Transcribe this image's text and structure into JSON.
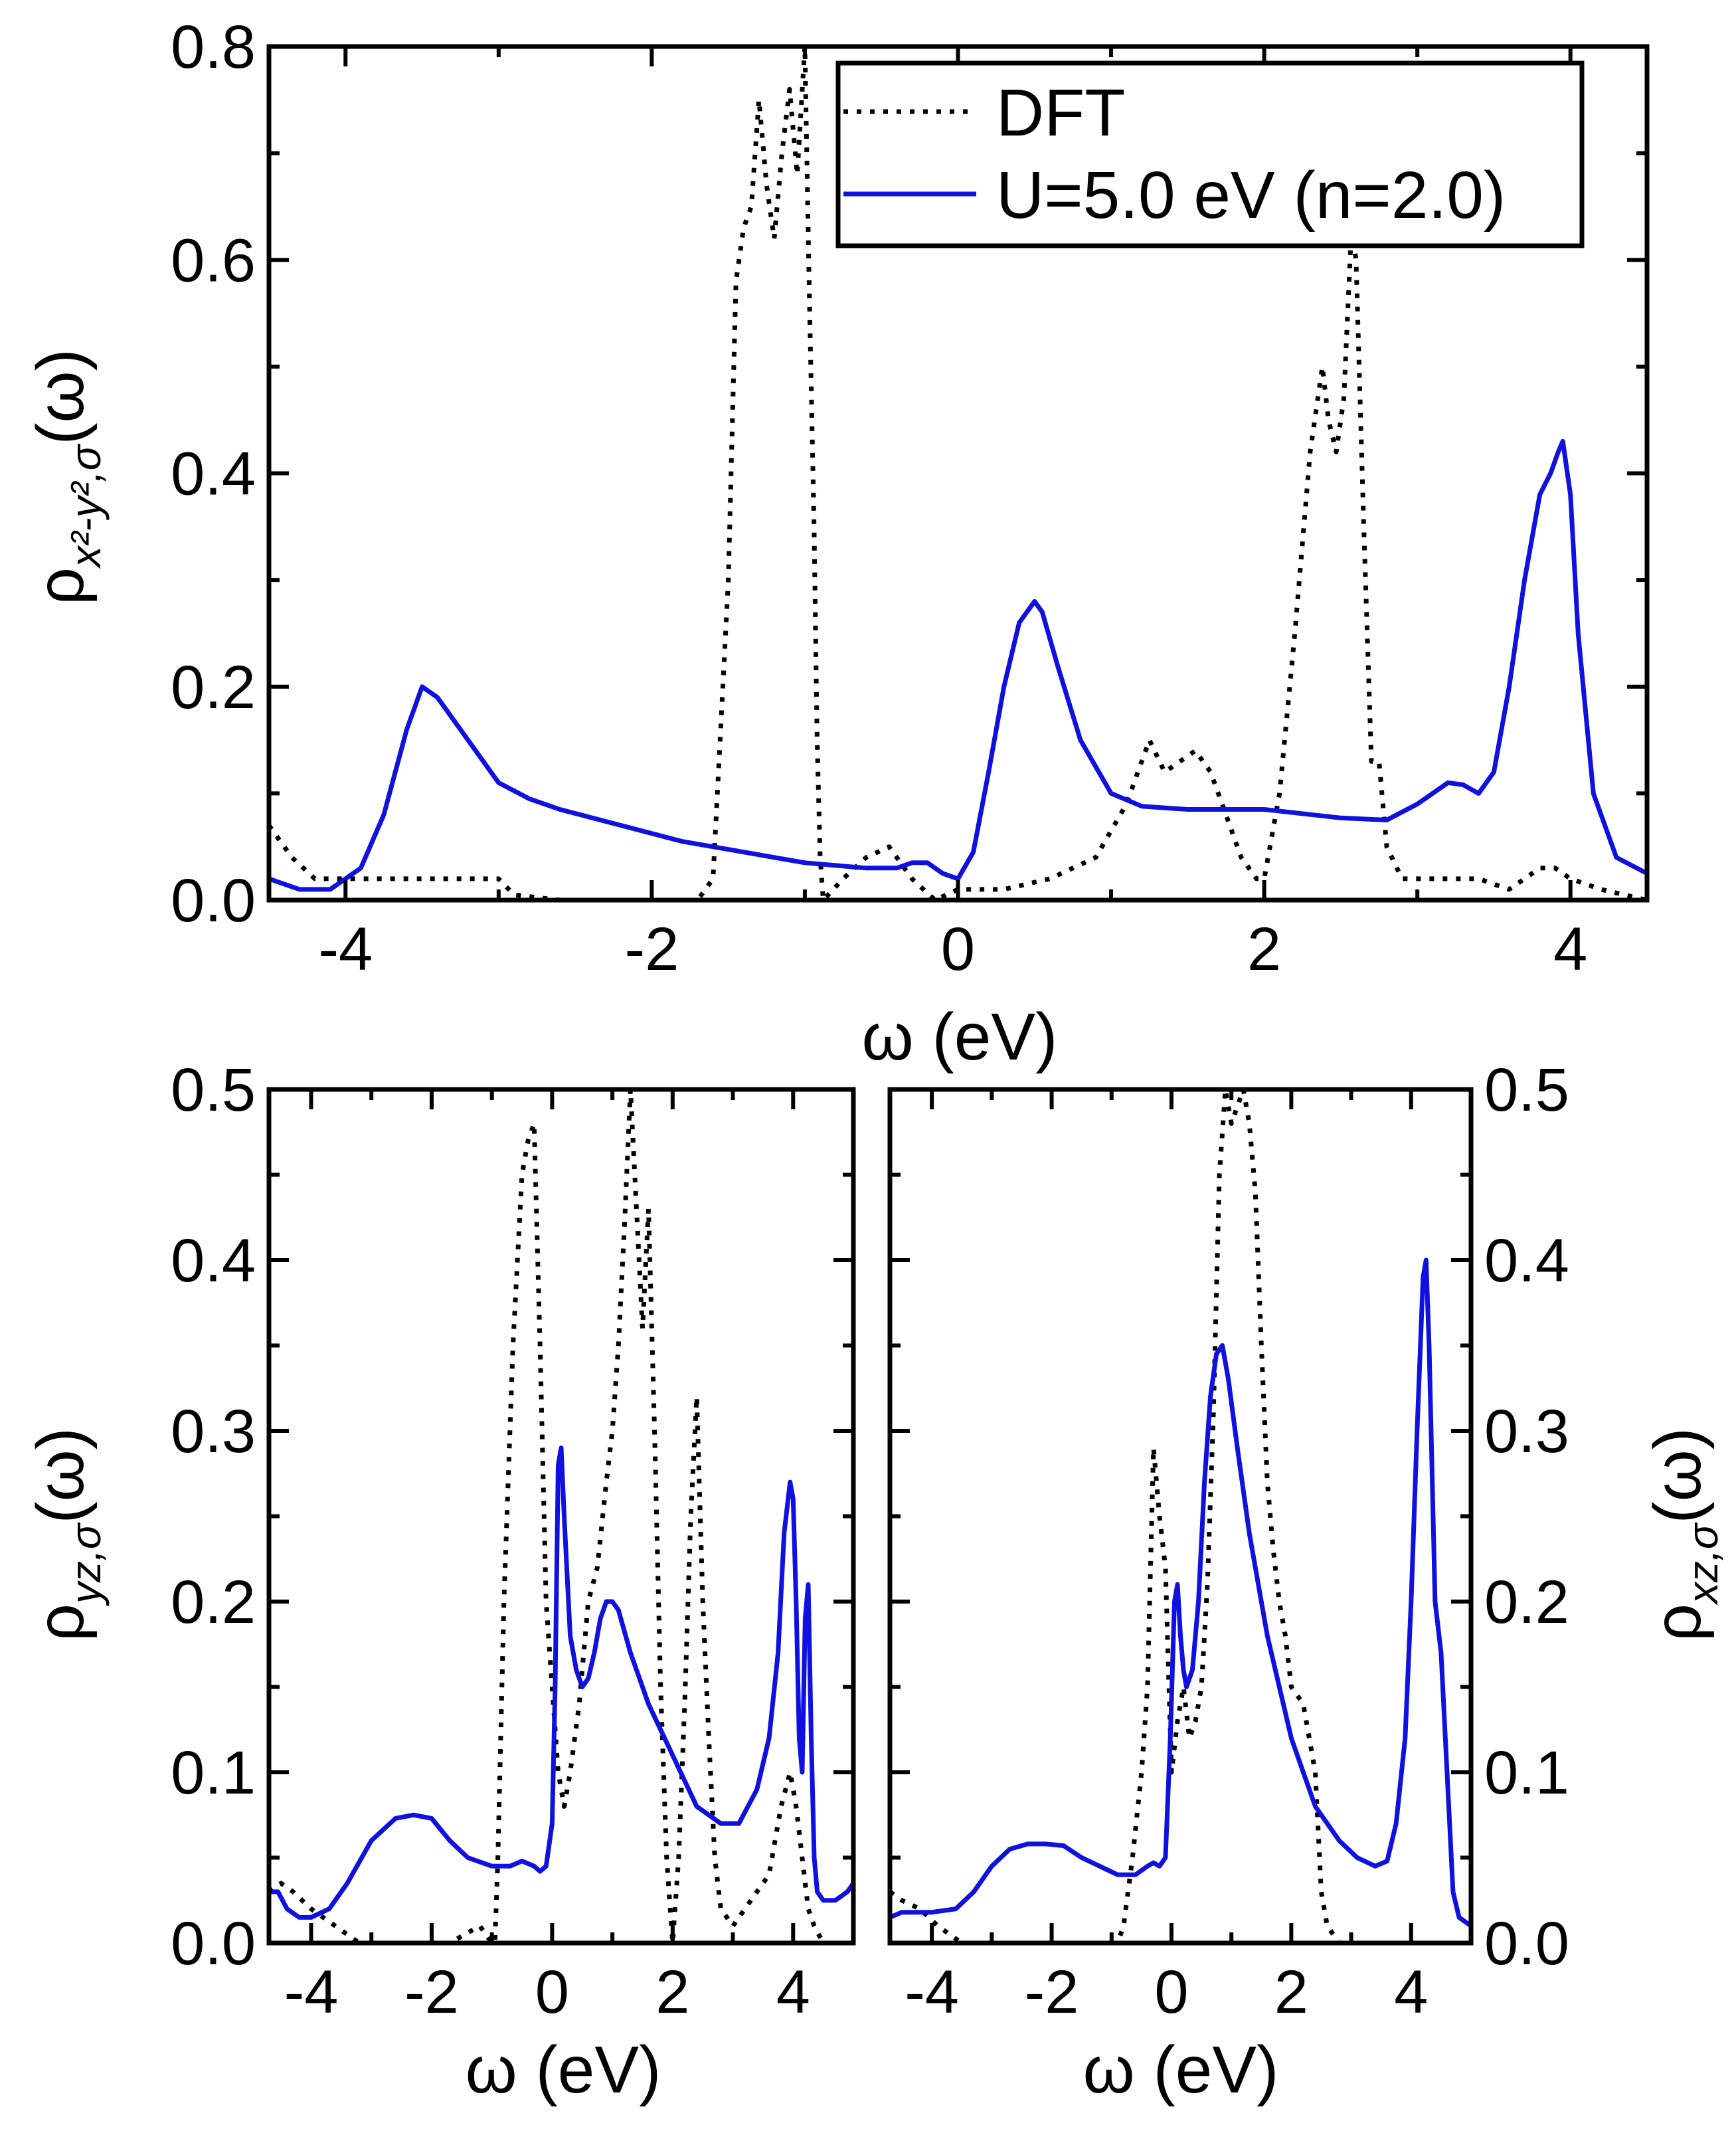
{
  "colors": {
    "dft": "#000000",
    "u": "#1010e0",
    "axis": "#000000"
  },
  "legend": {
    "dft_label": "DFT",
    "u_label": "U=5.0 eV (n=2.0)"
  },
  "chart_data": [
    {
      "id": "top",
      "type": "line",
      "xlabel": "ω (eV)",
      "ylabel": {
        "rho": "ρ",
        "sub": "x²-y²,σ",
        "tail": "(ω)"
      },
      "xlim": [
        -4.5,
        4.5
      ],
      "ylim": [
        0,
        0.8
      ],
      "xticks": [
        -4,
        -2,
        0,
        2,
        4
      ],
      "xtick_labels": [
        "-4",
        "-2",
        "0",
        "2",
        "4"
      ],
      "yticks": [
        0,
        0.2,
        0.4,
        0.6,
        0.8
      ],
      "ytick_labels": [
        "0.0",
        "0.2",
        "0.4",
        "0.6",
        "0.8"
      ],
      "series": [
        {
          "name": "DFT",
          "style": "dotted",
          "x": [
            -4.5,
            -4.35,
            -4.2,
            -4.0,
            -3.8,
            -3.5,
            -3.2,
            -3.0,
            -2.9,
            -2.6,
            -2.2,
            -1.9,
            -1.7,
            -1.6,
            -1.5,
            -1.45,
            -1.4,
            -1.35,
            -1.3,
            -1.25,
            -1.2,
            -1.15,
            -1.1,
            -1.05,
            -1.0,
            -0.97,
            -0.94,
            -0.92,
            -0.9,
            -0.88,
            -0.75,
            -0.6,
            -0.45,
            -0.3,
            -0.15,
            0.0,
            0.3,
            0.6,
            0.9,
            1.1,
            1.25,
            1.35,
            1.45,
            1.55,
            1.65,
            1.75,
            1.85,
            1.95,
            2.0,
            2.1,
            2.2,
            2.3,
            2.38,
            2.42,
            2.47,
            2.52,
            2.57,
            2.6,
            2.65,
            2.7,
            2.75,
            2.8,
            2.9,
            3.1,
            3.4,
            3.6,
            3.8,
            3.9,
            4.0,
            4.2,
            4.5
          ],
          "values": [
            0.07,
            0.04,
            0.02,
            0.02,
            0.02,
            0.02,
            0.02,
            0.02,
            0.005,
            0.0,
            0.0,
            0.0,
            0.0,
            0.02,
            0.3,
            0.58,
            0.63,
            0.65,
            0.75,
            0.67,
            0.62,
            0.7,
            0.76,
            0.68,
            0.8,
            0.56,
            0.35,
            0.15,
            0.04,
            0.0,
            0.02,
            0.04,
            0.05,
            0.02,
            0.0,
            0.01,
            0.01,
            0.02,
            0.04,
            0.09,
            0.15,
            0.12,
            0.13,
            0.14,
            0.12,
            0.08,
            0.04,
            0.02,
            0.02,
            0.1,
            0.25,
            0.42,
            0.5,
            0.45,
            0.42,
            0.47,
            0.63,
            0.6,
            0.35,
            0.13,
            0.13,
            0.05,
            0.02,
            0.02,
            0.02,
            0.01,
            0.03,
            0.03,
            0.02,
            0.01,
            0.0
          ]
        },
        {
          "name": "U=5.0 eV (n=2.0)",
          "style": "solid",
          "x": [
            -4.5,
            -4.3,
            -4.1,
            -3.9,
            -3.75,
            -3.6,
            -3.5,
            -3.4,
            -3.2,
            -3.0,
            -2.8,
            -2.6,
            -2.2,
            -1.8,
            -1.4,
            -1.0,
            -0.6,
            -0.4,
            -0.3,
            -0.2,
            -0.1,
            0.0,
            0.1,
            0.2,
            0.3,
            0.4,
            0.5,
            0.55,
            0.65,
            0.8,
            1.0,
            1.2,
            1.5,
            2.0,
            2.5,
            2.8,
            3.0,
            3.1,
            3.2,
            3.3,
            3.4,
            3.5,
            3.6,
            3.7,
            3.8,
            3.87,
            3.92,
            3.95,
            4.0,
            4.05,
            4.15,
            4.3,
            4.5
          ],
          "values": [
            0.02,
            0.01,
            0.01,
            0.03,
            0.08,
            0.16,
            0.2,
            0.19,
            0.15,
            0.11,
            0.095,
            0.085,
            0.07,
            0.055,
            0.045,
            0.035,
            0.03,
            0.03,
            0.035,
            0.035,
            0.025,
            0.02,
            0.045,
            0.12,
            0.2,
            0.26,
            0.28,
            0.27,
            0.22,
            0.15,
            0.1,
            0.088,
            0.085,
            0.085,
            0.077,
            0.075,
            0.09,
            0.1,
            0.11,
            0.108,
            0.1,
            0.12,
            0.2,
            0.3,
            0.38,
            0.4,
            0.42,
            0.43,
            0.38,
            0.25,
            0.1,
            0.04,
            0.025
          ]
        }
      ]
    },
    {
      "id": "bottom-left",
      "type": "line",
      "xlabel": "ω (eV)",
      "ylabel": {
        "rho": "ρ",
        "sub": "yz,σ",
        "tail": "(ω)"
      },
      "xlim": [
        -4.7,
        5.0
      ],
      "ylim": [
        0,
        0.5
      ],
      "xticks": [
        -4,
        -2,
        0,
        2,
        4
      ],
      "xtick_labels": [
        "-4",
        "-2",
        "0",
        "2",
        "4"
      ],
      "yticks": [
        0,
        0.1,
        0.2,
        0.3,
        0.4,
        0.5
      ],
      "ytick_labels": [
        "0.0",
        "0.1",
        "0.2",
        "0.3",
        "0.4",
        "0.5"
      ],
      "series": [
        {
          "name": "DFT",
          "style": "dotted",
          "x": [
            -4.7,
            -4.5,
            -4.3,
            -4.0,
            -3.6,
            -3.2,
            -2.7,
            -2.2,
            -1.7,
            -1.2,
            -1.0,
            -0.95,
            -0.9,
            -0.8,
            -0.65,
            -0.5,
            -0.4,
            -0.3,
            -0.2,
            -0.1,
            0.0,
            0.1,
            0.2,
            0.3,
            0.45,
            0.6,
            0.75,
            0.9,
            1.0,
            1.1,
            1.2,
            1.3,
            1.4,
            1.5,
            1.6,
            1.7,
            1.8,
            1.9,
            2.0,
            2.1,
            2.2,
            2.3,
            2.4,
            2.5,
            2.6,
            2.7,
            2.8,
            3.0,
            3.2,
            3.4,
            3.6,
            3.8,
            3.95,
            4.05,
            4.15,
            4.25,
            4.35,
            4.5,
            4.65,
            4.8,
            5.0
          ],
          "values": [
            0.03,
            0.035,
            0.03,
            0.02,
            0.01,
            0.0,
            0.0,
            0.0,
            0.0,
            0.01,
            0.0,
            0.0,
            0.05,
            0.2,
            0.35,
            0.45,
            0.47,
            0.48,
            0.35,
            0.2,
            0.15,
            0.1,
            0.08,
            0.1,
            0.14,
            0.2,
            0.22,
            0.27,
            0.3,
            0.35,
            0.42,
            0.5,
            0.43,
            0.36,
            0.43,
            0.3,
            0.15,
            0.05,
            0.0,
            0.05,
            0.14,
            0.25,
            0.32,
            0.2,
            0.12,
            0.05,
            0.02,
            0.01,
            0.02,
            0.03,
            0.04,
            0.08,
            0.1,
            0.08,
            0.05,
            0.02,
            0.01,
            0.0,
            0.0,
            0.0,
            0.0
          ]
        },
        {
          "name": "U=5.0 eV (n=2.0)",
          "style": "solid",
          "x": [
            -4.7,
            -4.55,
            -4.4,
            -4.2,
            -4.0,
            -3.7,
            -3.4,
            -3.0,
            -2.6,
            -2.3,
            -2.0,
            -1.7,
            -1.4,
            -1.0,
            -0.7,
            -0.5,
            -0.3,
            -0.2,
            -0.1,
            0.0,
            0.05,
            0.1,
            0.15,
            0.2,
            0.3,
            0.4,
            0.5,
            0.6,
            0.7,
            0.8,
            0.9,
            1.0,
            1.1,
            1.3,
            1.6,
            2.0,
            2.4,
            2.8,
            3.1,
            3.4,
            3.6,
            3.75,
            3.85,
            3.95,
            4.0,
            4.05,
            4.1,
            4.15,
            4.2,
            4.25,
            4.3,
            4.35,
            4.4,
            4.5,
            4.7,
            4.9,
            5.0
          ],
          "values": [
            0.03,
            0.03,
            0.02,
            0.015,
            0.015,
            0.02,
            0.035,
            0.06,
            0.073,
            0.075,
            0.073,
            0.06,
            0.05,
            0.045,
            0.045,
            0.048,
            0.045,
            0.042,
            0.045,
            0.07,
            0.15,
            0.28,
            0.29,
            0.25,
            0.18,
            0.16,
            0.15,
            0.155,
            0.17,
            0.19,
            0.2,
            0.2,
            0.195,
            0.17,
            0.14,
            0.11,
            0.08,
            0.07,
            0.07,
            0.09,
            0.12,
            0.17,
            0.24,
            0.27,
            0.26,
            0.2,
            0.12,
            0.1,
            0.19,
            0.21,
            0.12,
            0.05,
            0.03,
            0.025,
            0.025,
            0.03,
            0.035
          ]
        }
      ]
    },
    {
      "id": "bottom-right",
      "type": "line",
      "xlabel": "ω (eV)",
      "ylabel": {
        "rho": "ρ",
        "sub": "xz,σ",
        "tail": "(ω)"
      },
      "xlim": [
        -4.7,
        5.0
      ],
      "ylim": [
        0,
        0.5
      ],
      "xticks": [
        -4,
        -2,
        0,
        2,
        4
      ],
      "xtick_labels": [
        "-4",
        "-2",
        "0",
        "2",
        "4"
      ],
      "yticks": [
        0,
        0.1,
        0.2,
        0.3,
        0.4,
        0.5
      ],
      "ytick_labels": [
        "0.0",
        "0.1",
        "0.2",
        "0.3",
        "0.4",
        "0.5"
      ],
      "series": [
        {
          "name": "DFT",
          "style": "dotted",
          "x": [
            -4.7,
            -4.5,
            -4.2,
            -3.9,
            -3.5,
            -3.1,
            -2.8,
            -2.4,
            -2.0,
            -1.6,
            -1.2,
            -0.9,
            -0.8,
            -0.65,
            -0.5,
            -0.4,
            -0.3,
            -0.2,
            -0.1,
            0.0,
            0.1,
            0.2,
            0.3,
            0.4,
            0.5,
            0.6,
            0.7,
            0.8,
            0.9,
            1.0,
            1.1,
            1.2,
            1.3,
            1.4,
            1.5,
            1.6,
            1.7,
            1.8,
            1.9,
            2.0,
            2.2,
            2.4,
            2.5,
            2.6,
            2.8,
            3.0,
            3.4,
            4.0,
            4.5,
            5.0
          ],
          "values": [
            0.03,
            0.025,
            0.02,
            0.01,
            0.0,
            0.0,
            0.0,
            0.0,
            0.0,
            0.0,
            0.0,
            0.0,
            0.01,
            0.05,
            0.1,
            0.15,
            0.29,
            0.25,
            0.22,
            0.1,
            0.13,
            0.15,
            0.12,
            0.13,
            0.15,
            0.21,
            0.31,
            0.45,
            0.5,
            0.48,
            0.49,
            0.5,
            0.48,
            0.44,
            0.35,
            0.27,
            0.23,
            0.2,
            0.18,
            0.15,
            0.14,
            0.1,
            0.03,
            0.01,
            0.0,
            0.0,
            0.0,
            0.0,
            0.0,
            0.0
          ]
        },
        {
          "name": "U=5.0 eV (n=2.0)",
          "style": "solid",
          "x": [
            -4.7,
            -4.5,
            -4.2,
            -4.0,
            -3.6,
            -3.3,
            -3.0,
            -2.7,
            -2.4,
            -2.1,
            -1.8,
            -1.5,
            -1.2,
            -0.9,
            -0.6,
            -0.4,
            -0.3,
            -0.2,
            -0.1,
            -0.02,
            0.05,
            0.1,
            0.15,
            0.2,
            0.25,
            0.3,
            0.35,
            0.45,
            0.55,
            0.65,
            0.75,
            0.85,
            0.95,
            1.1,
            1.3,
            1.6,
            2.0,
            2.4,
            2.8,
            3.1,
            3.4,
            3.6,
            3.75,
            3.9,
            4.0,
            4.1,
            4.2,
            4.25,
            4.3,
            4.4,
            4.5,
            4.6,
            4.7,
            4.8,
            5.0
          ],
          "values": [
            0.015,
            0.018,
            0.018,
            0.018,
            0.02,
            0.03,
            0.045,
            0.055,
            0.058,
            0.058,
            0.057,
            0.05,
            0.045,
            0.04,
            0.04,
            0.045,
            0.047,
            0.045,
            0.05,
            0.12,
            0.2,
            0.21,
            0.18,
            0.16,
            0.15,
            0.155,
            0.16,
            0.2,
            0.27,
            0.32,
            0.345,
            0.35,
            0.33,
            0.29,
            0.24,
            0.18,
            0.12,
            0.08,
            0.06,
            0.05,
            0.045,
            0.048,
            0.07,
            0.12,
            0.2,
            0.3,
            0.39,
            0.4,
            0.35,
            0.2,
            0.17,
            0.1,
            0.03,
            0.015,
            0.01
          ]
        }
      ]
    }
  ]
}
